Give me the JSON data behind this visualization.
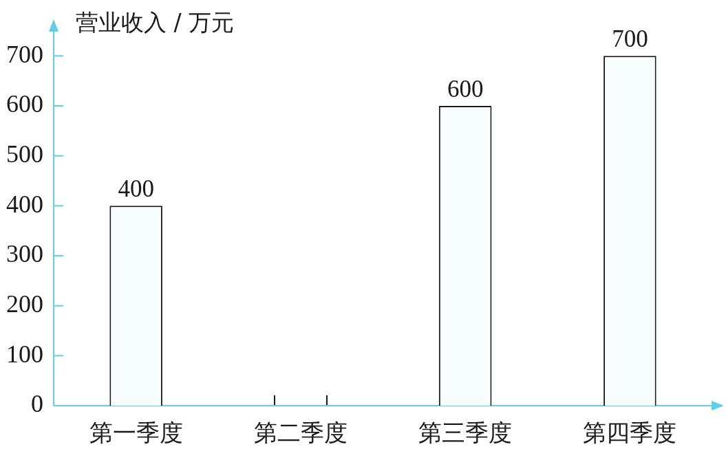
{
  "chart_data": {
    "type": "bar",
    "ylabel": "营业收入 / 万元",
    "categories": [
      "第一季度",
      "第二季度",
      "第三季度",
      "第四季度"
    ],
    "values": [
      400,
      null,
      600,
      700
    ],
    "color": "#f7fcfd",
    "ylim": [
      0,
      750
    ],
    "yticks": [
      0,
      100,
      200,
      300,
      400,
      500,
      600,
      700
    ],
    "data_labels": true
  }
}
